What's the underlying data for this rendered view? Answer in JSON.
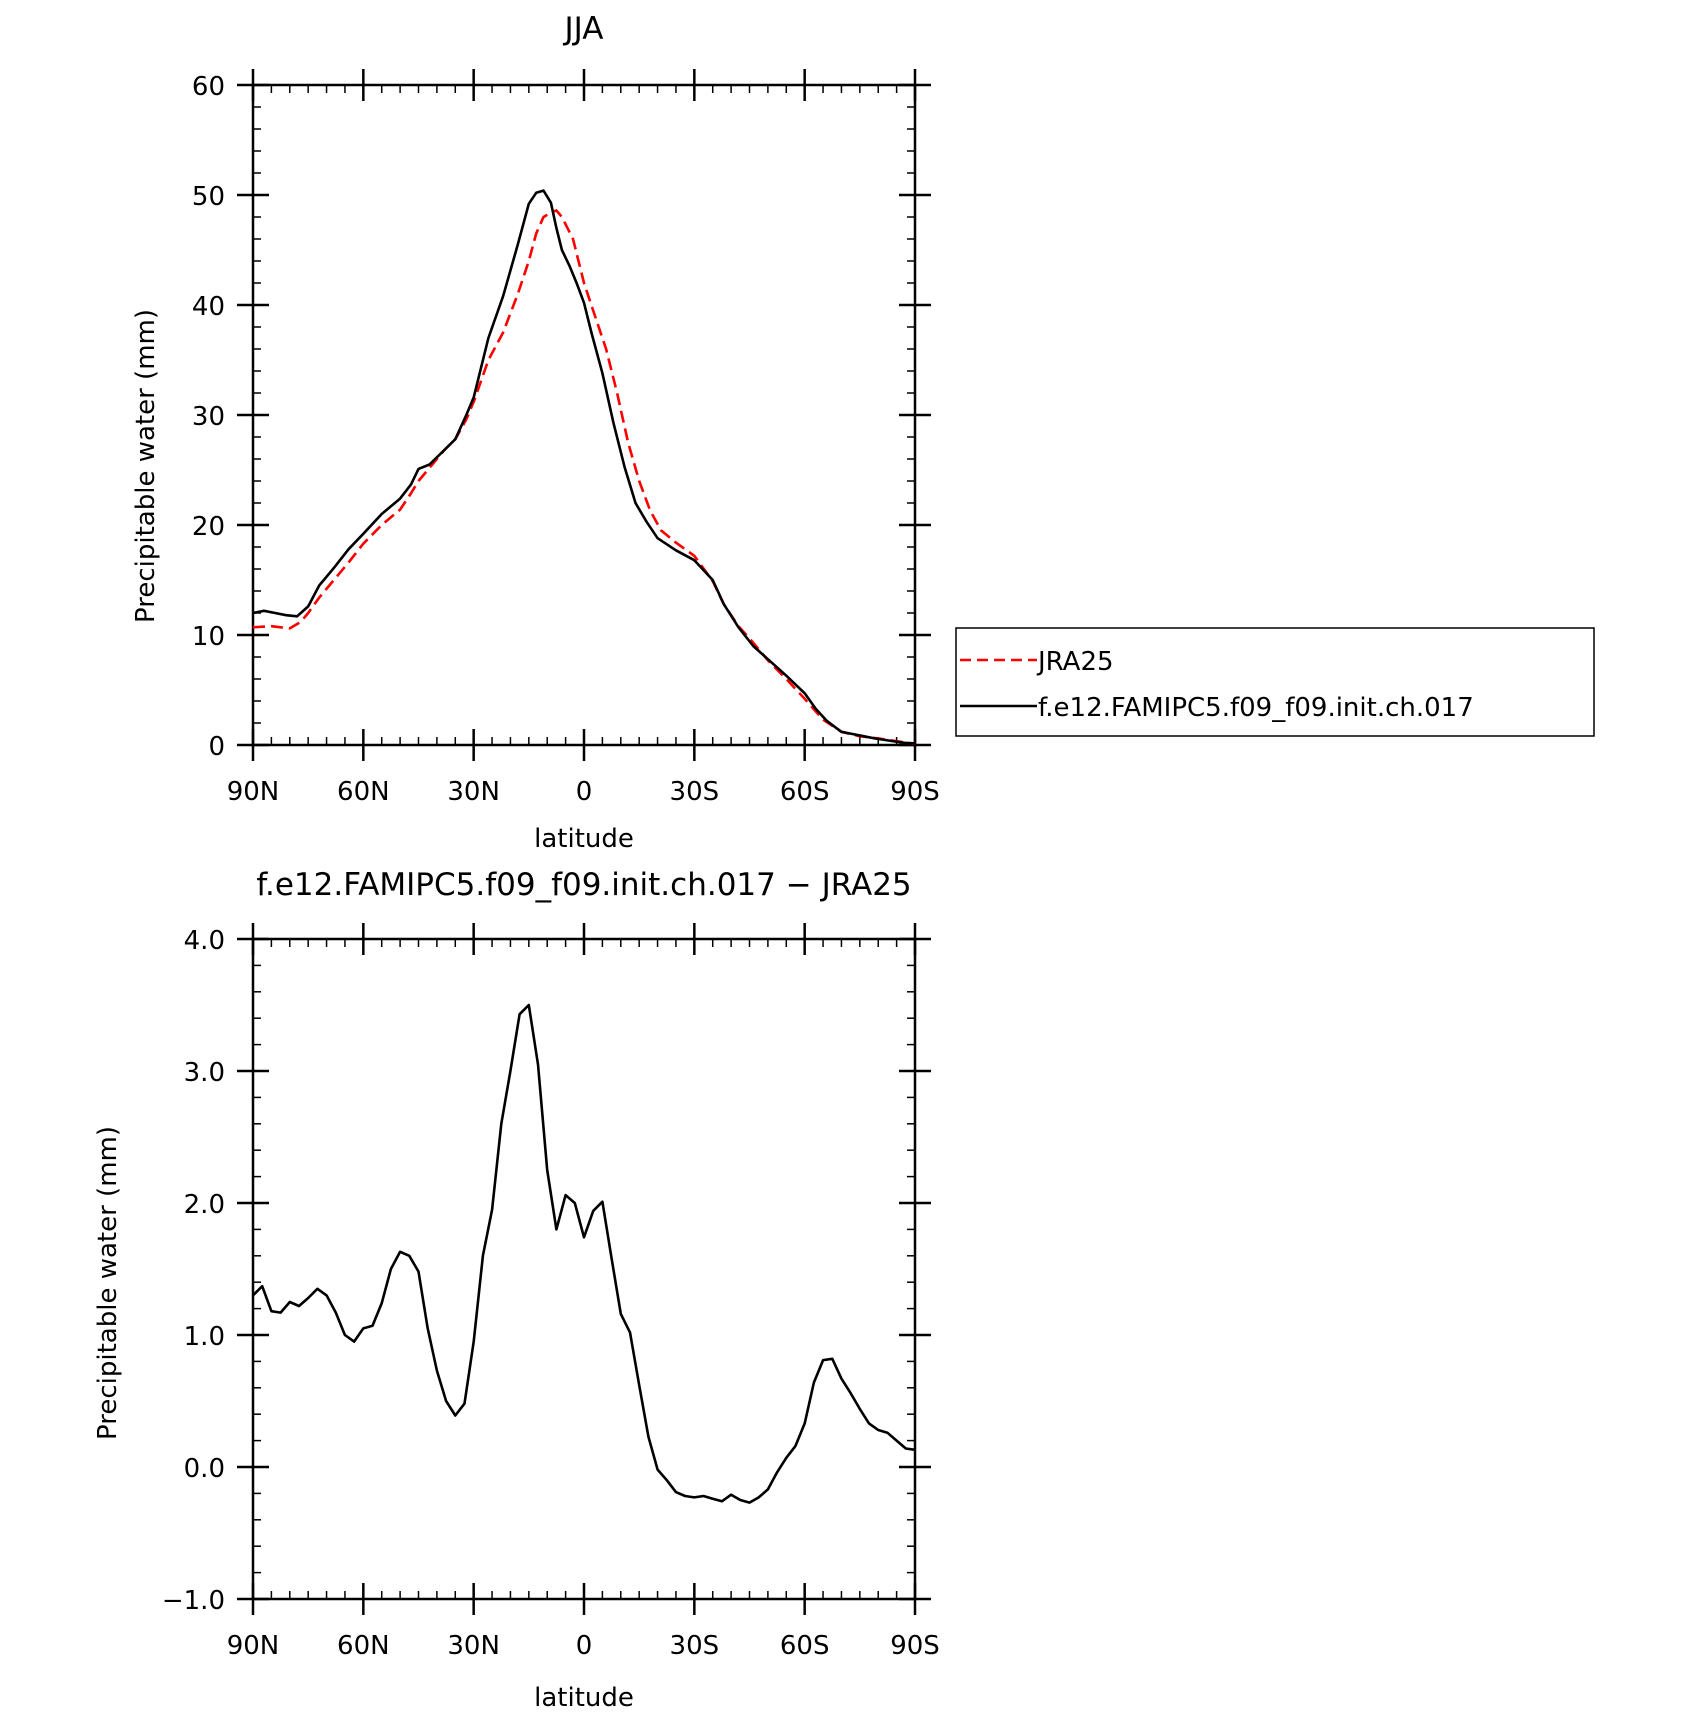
{
  "chart_data": [
    {
      "type": "line",
      "title": "JJA",
      "xlabel": "latitude",
      "ylabel": "Precipitable water (mm)",
      "xlim": [
        90,
        -90
      ],
      "ylim": [
        0,
        60
      ],
      "x_ticks": [
        90,
        60,
        30,
        0,
        -30,
        -60,
        -90
      ],
      "x_tick_labels": [
        "90N",
        "60N",
        "30N",
        "0",
        "30S",
        "60S",
        "90S"
      ],
      "y_ticks": [
        0,
        10,
        20,
        30,
        40,
        50,
        60
      ],
      "y_tick_labels": [
        "0",
        "10",
        "20",
        "30",
        "40",
        "50",
        "60"
      ],
      "legend_position": "right",
      "series": [
        {
          "name": "JRA25",
          "color": "#ff0000",
          "dash": "dashed",
          "x": [
            90,
            85,
            80,
            77,
            75,
            72,
            68,
            64,
            60,
            55,
            50,
            47,
            45,
            42,
            38,
            35,
            32,
            30,
            26,
            22,
            18,
            15,
            13,
            11,
            9,
            7.5,
            6,
            3,
            0,
            -3,
            -6,
            -9,
            -12,
            -15,
            -18,
            -21,
            -25,
            -30,
            -35,
            -38,
            -42,
            -46,
            -50,
            -55,
            -60,
            -65,
            -70,
            -75,
            -80,
            -84,
            -88,
            -90
          ],
          "values": [
            10.7,
            10.8,
            10.6,
            11.2,
            12.0,
            13.4,
            15.0,
            16.6,
            18.3,
            20.0,
            21.4,
            22.9,
            24.0,
            25.2,
            26.8,
            27.8,
            29.6,
            31.2,
            35.0,
            37.5,
            41.0,
            44.0,
            46.5,
            48.0,
            48.4,
            48.6,
            48.0,
            46.0,
            42.0,
            39.0,
            36.0,
            32.0,
            27.5,
            24.0,
            21.3,
            19.5,
            18.4,
            17.2,
            14.9,
            12.8,
            10.8,
            9.3,
            7.7,
            6.0,
            4.2,
            2.3,
            1.2,
            0.8,
            0.6,
            0.4,
            0.2,
            0.1
          ]
        },
        {
          "name": "f.e12.FAMIPC5.f09_f09.init.ch.017",
          "color": "#000000",
          "dash": "solid",
          "x": [
            90,
            87,
            84,
            81,
            78,
            75,
            72,
            68,
            64,
            60,
            55,
            50,
            47,
            45,
            42,
            38,
            35,
            32,
            30,
            26,
            22,
            18,
            15,
            13,
            11,
            9,
            7.5,
            6,
            4,
            2,
            0,
            -2,
            -5,
            -8,
            -11,
            -14,
            -17,
            -20,
            -25,
            -30,
            -35,
            -38,
            -42,
            -46,
            -50,
            -55,
            -60,
            -63,
            -66,
            -70,
            -73,
            -76,
            -79,
            -83,
            -87,
            -90
          ],
          "values": [
            12.0,
            12.2,
            12.0,
            11.8,
            11.7,
            12.6,
            14.5,
            16.1,
            17.8,
            19.2,
            21.0,
            22.4,
            23.7,
            25.1,
            25.5,
            26.8,
            27.8,
            30.0,
            31.6,
            37.0,
            40.8,
            45.5,
            49.2,
            50.2,
            50.4,
            49.3,
            47.0,
            45.0,
            43.6,
            42.0,
            40.2,
            37.5,
            33.8,
            29.3,
            25.3,
            22.0,
            20.3,
            18.8,
            17.7,
            16.8,
            15.0,
            12.8,
            10.7,
            9.0,
            7.8,
            6.3,
            4.7,
            3.3,
            2.2,
            1.2,
            1.0,
            0.8,
            0.6,
            0.4,
            0.2,
            0.15
          ]
        }
      ]
    },
    {
      "type": "line",
      "title": "f.e12.FAMIPC5.f09_f09.init.ch.017 − JRA25",
      "xlabel": "latitude",
      "ylabel": "Precipitable water (mm)",
      "xlim": [
        90,
        -90
      ],
      "ylim": [
        -1.0,
        4.0
      ],
      "x_ticks": [
        90,
        60,
        30,
        0,
        -30,
        -60,
        -90
      ],
      "x_tick_labels": [
        "90N",
        "60N",
        "30N",
        "0",
        "30S",
        "60S",
        "90S"
      ],
      "y_ticks": [
        -1.0,
        0.0,
        1.0,
        2.0,
        3.0,
        4.0
      ],
      "y_tick_labels": [
        "−1.0",
        "0.0",
        "1.0",
        "2.0",
        "3.0",
        "4.0"
      ],
      "series": [
        {
          "color": "#000000",
          "dash": "solid",
          "x": [
            90,
            87.5,
            85,
            82.5,
            80,
            77.5,
            75,
            72.5,
            70,
            67.5,
            65,
            62.5,
            60,
            57.5,
            55,
            52.5,
            50,
            47.5,
            45,
            42.5,
            40,
            37.5,
            35,
            32.5,
            30,
            27.5,
            25,
            22.5,
            20,
            17.5,
            15,
            12.5,
            10,
            7.5,
            5,
            2.5,
            0,
            -2.5,
            -5,
            -7.5,
            -10,
            -12.5,
            -15,
            -17.5,
            -20,
            -22.5,
            -25,
            -27.5,
            -30,
            -32.5,
            -35,
            -37.5,
            -40,
            -42.5,
            -45,
            -47.5,
            -50,
            -52.5,
            -55,
            -57.5,
            -60,
            -62.5,
            -65,
            -67.5,
            -70,
            -72.5,
            -75,
            -77.5,
            -80,
            -82.5,
            -85,
            -87.5,
            -90
          ],
          "values": [
            1.3,
            1.37,
            1.18,
            1.17,
            1.25,
            1.22,
            1.28,
            1.35,
            1.3,
            1.17,
            1.0,
            0.95,
            1.05,
            1.07,
            1.24,
            1.5,
            1.63,
            1.6,
            1.48,
            1.05,
            0.73,
            0.5,
            0.39,
            0.48,
            0.95,
            1.6,
            1.95,
            2.6,
            3.0,
            3.43,
            3.5,
            3.05,
            2.25,
            1.8,
            2.06,
            2.0,
            1.74,
            1.94,
            2.01,
            1.58,
            1.16,
            1.02,
            0.62,
            0.23,
            -0.02,
            -0.1,
            -0.19,
            -0.22,
            -0.23,
            -0.22,
            -0.24,
            -0.26,
            -0.21,
            -0.25,
            -0.27,
            -0.23,
            -0.17,
            -0.04,
            0.07,
            0.16,
            0.33,
            0.64,
            0.81,
            0.82,
            0.67,
            0.56,
            0.44,
            0.33,
            0.28,
            0.26,
            0.2,
            0.14,
            0.13
          ]
        }
      ]
    }
  ]
}
